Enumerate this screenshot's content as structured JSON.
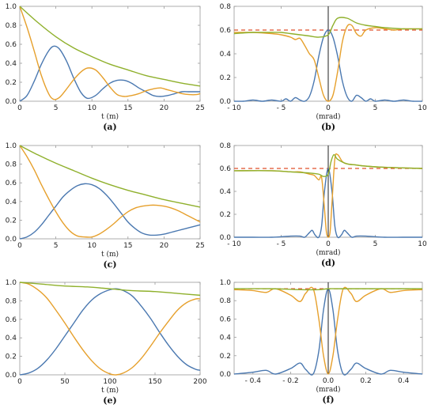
{
  "figure": {
    "colors": {
      "blue": "#4a78b0",
      "orange": "#e6a02c",
      "green": "#8fb02c",
      "red_dashed": "#e0502c",
      "axis": "#999999",
      "vline": "#222222"
    }
  },
  "chart_data": [
    {
      "id": "a",
      "label": "(a)",
      "type": "line",
      "xlabel": "t (m)",
      "ylabel": "",
      "xlim": [
        0,
        25
      ],
      "ylim": [
        0,
        1.0
      ],
      "xticks": [
        0,
        5,
        10,
        15,
        20,
        25
      ],
      "xtick_labels": [
        "0",
        "5",
        "10",
        "15",
        "20",
        "25"
      ],
      "yticks": [
        0,
        0.2,
        0.4,
        0.6,
        0.8,
        1.0
      ],
      "ytick_labels": [
        "0.0",
        "0.2",
        "0.4",
        "0.6",
        "0.8",
        "1.0"
      ],
      "series": [
        {
          "color": "blue",
          "x": [
            0,
            1,
            2,
            3,
            4,
            4.7,
            5.5,
            6.5,
            7.5,
            8.5,
            9.4,
            10.5,
            11.5,
            12.5,
            13.5,
            14.5,
            15.5,
            16.5,
            17.5,
            18.5,
            19.5,
            20.5,
            21.5,
            22.5,
            23.5,
            24.5,
            25
          ],
          "y": [
            0,
            0.06,
            0.21,
            0.39,
            0.53,
            0.58,
            0.55,
            0.42,
            0.24,
            0.09,
            0.03,
            0.06,
            0.13,
            0.19,
            0.22,
            0.22,
            0.19,
            0.14,
            0.1,
            0.06,
            0.05,
            0.06,
            0.08,
            0.1,
            0.1,
            0.1,
            0.1
          ]
        },
        {
          "color": "orange",
          "x": [
            0,
            1,
            2,
            3,
            4,
            4.7,
            5.5,
            6.5,
            7.5,
            8.5,
            9.4,
            10.5,
            11.5,
            12.5,
            13.5,
            14.5,
            15.5,
            16.5,
            17.5,
            18.5,
            19.5,
            20.5,
            21.5,
            22.5,
            23.5,
            24.5,
            25
          ],
          "y": [
            1.0,
            0.78,
            0.53,
            0.27,
            0.08,
            0.02,
            0.04,
            0.13,
            0.23,
            0.31,
            0.35,
            0.33,
            0.25,
            0.15,
            0.07,
            0.05,
            0.06,
            0.08,
            0.11,
            0.13,
            0.14,
            0.12,
            0.1,
            0.08,
            0.07,
            0.07,
            0.08
          ]
        },
        {
          "color": "green",
          "x": [
            0,
            2.5,
            5,
            7.5,
            10,
            12.5,
            15,
            17.5,
            20,
            22.5,
            25
          ],
          "y": [
            1.0,
            0.83,
            0.68,
            0.56,
            0.47,
            0.39,
            0.33,
            0.27,
            0.23,
            0.19,
            0.16
          ]
        }
      ]
    },
    {
      "id": "b",
      "label": "(b)",
      "type": "line",
      "xlabel": "(mrad)",
      "ylabel": "",
      "xlim": [
        -10,
        10
      ],
      "ylim": [
        0,
        0.8
      ],
      "xticks": [
        -10,
        -5,
        0,
        5,
        10
      ],
      "xtick_labels": [
        "- 10",
        "- 5",
        "0",
        "5",
        "10"
      ],
      "yticks": [
        0,
        0.2,
        0.4,
        0.6,
        0.8
      ],
      "ytick_labels": [
        "0.0",
        "0.2",
        "0.4",
        "0.6",
        "0.8"
      ],
      "hline": {
        "y": 0.6,
        "color": "red_dashed"
      },
      "vline": {
        "x": 0
      },
      "series": [
        {
          "color": "blue",
          "x": [
            -10,
            -9,
            -8,
            -7,
            -6,
            -5,
            -4.5,
            -4,
            -3.5,
            -3,
            -2.5,
            -2,
            -1.5,
            -1,
            -0.5,
            0,
            0.5,
            1,
            1.5,
            2,
            2.5,
            3,
            3.5,
            4,
            4.5,
            5,
            6,
            7,
            8,
            9,
            10
          ],
          "y": [
            0.0,
            0.0,
            0.01,
            0.0,
            0.01,
            0.0,
            0.02,
            0.0,
            0.03,
            0.01,
            0.0,
            0.04,
            0.17,
            0.38,
            0.54,
            0.6,
            0.54,
            0.38,
            0.17,
            0.04,
            0.0,
            0.05,
            0.03,
            0.0,
            0.02,
            0.0,
            0.01,
            0.0,
            0.01,
            0.0,
            0.0
          ]
        },
        {
          "color": "orange",
          "x": [
            -10,
            -8,
            -6,
            -5,
            -4,
            -3.5,
            -3,
            -2.5,
            -2,
            -1.5,
            -1,
            -0.5,
            0,
            0.5,
            1,
            1.5,
            2,
            2.5,
            3,
            3.5,
            4,
            5,
            6,
            7,
            8,
            10
          ],
          "y": [
            0.58,
            0.58,
            0.57,
            0.56,
            0.54,
            0.52,
            0.53,
            0.47,
            0.4,
            0.35,
            0.2,
            0.05,
            0.0,
            0.05,
            0.25,
            0.5,
            0.63,
            0.64,
            0.57,
            0.55,
            0.6,
            0.62,
            0.61,
            0.6,
            0.61,
            0.61
          ]
        },
        {
          "color": "green",
          "x": [
            -10,
            -8,
            -6,
            -5,
            -4,
            -3,
            -2,
            -1,
            0,
            0.5,
            1,
            2,
            3,
            4,
            5,
            6,
            8,
            10
          ],
          "y": [
            0.57,
            0.58,
            0.58,
            0.58,
            0.57,
            0.56,
            0.55,
            0.54,
            0.56,
            0.64,
            0.7,
            0.7,
            0.66,
            0.64,
            0.63,
            0.62,
            0.61,
            0.61
          ]
        }
      ]
    },
    {
      "id": "c",
      "label": "(c)",
      "type": "line",
      "xlabel": "t (m)",
      "ylabel": "",
      "xlim": [
        0,
        25
      ],
      "ylim": [
        0,
        1.0
      ],
      "xticks": [
        0,
        5,
        10,
        15,
        20,
        25
      ],
      "xtick_labels": [
        "0",
        "5",
        "10",
        "15",
        "20",
        "25"
      ],
      "yticks": [
        0,
        0.2,
        0.4,
        0.6,
        0.8,
        1.0
      ],
      "ytick_labels": [
        "0.0",
        "0.2",
        "0.4",
        "0.6",
        "0.8",
        "1.0"
      ],
      "series": [
        {
          "color": "blue",
          "x": [
            0,
            1,
            2,
            3,
            4,
            5,
            6,
            7,
            8,
            9,
            10,
            11,
            12,
            13,
            14,
            15,
            16,
            17,
            18,
            19,
            20,
            21,
            22,
            23,
            24,
            25
          ],
          "y": [
            0,
            0.02,
            0.07,
            0.15,
            0.25,
            0.35,
            0.45,
            0.52,
            0.57,
            0.59,
            0.58,
            0.54,
            0.47,
            0.38,
            0.28,
            0.18,
            0.11,
            0.06,
            0.04,
            0.04,
            0.05,
            0.07,
            0.09,
            0.11,
            0.13,
            0.15
          ]
        },
        {
          "color": "orange",
          "x": [
            0,
            1,
            2,
            3,
            4,
            5,
            6,
            7,
            8,
            9,
            10,
            11,
            12,
            13,
            14,
            15,
            16,
            17,
            18,
            19,
            20,
            21,
            22,
            23,
            24,
            25
          ],
          "y": [
            1.0,
            0.88,
            0.74,
            0.58,
            0.43,
            0.29,
            0.17,
            0.08,
            0.03,
            0.02,
            0.02,
            0.05,
            0.1,
            0.16,
            0.23,
            0.29,
            0.33,
            0.35,
            0.36,
            0.36,
            0.35,
            0.33,
            0.3,
            0.26,
            0.22,
            0.18
          ]
        },
        {
          "color": "green",
          "x": [
            0,
            2.5,
            5,
            7.5,
            10,
            12.5,
            15,
            17.5,
            20,
            22.5,
            25
          ],
          "y": [
            1.0,
            0.9,
            0.81,
            0.73,
            0.65,
            0.58,
            0.52,
            0.47,
            0.42,
            0.38,
            0.34
          ]
        }
      ]
    },
    {
      "id": "d",
      "label": "(d)",
      "type": "line",
      "xlabel": "(mrad)",
      "ylabel": "",
      "xlim": [
        -10,
        10
      ],
      "ylim": [
        0,
        0.8
      ],
      "xticks": [
        -10,
        -5,
        0,
        5,
        10
      ],
      "xtick_labels": [
        "- 10",
        "- 5",
        "0",
        "5",
        "10"
      ],
      "yticks": [
        0,
        0.2,
        0.4,
        0.6,
        0.8
      ],
      "ytick_labels": [
        "0.0",
        "0.2",
        "0.4",
        "0.6",
        "0.8"
      ],
      "hline": {
        "y": 0.6,
        "color": "red_dashed"
      },
      "vline": {
        "x": 0
      },
      "series": [
        {
          "color": "blue",
          "x": [
            -10,
            -8,
            -6,
            -4,
            -3,
            -2.5,
            -2,
            -1.7,
            -1.4,
            -1,
            -0.7,
            -0.4,
            0,
            0.4,
            0.7,
            1,
            1.4,
            1.7,
            2,
            2.5,
            3,
            4,
            6,
            8,
            10
          ],
          "y": [
            0.0,
            0.0,
            0.0,
            0.01,
            0.01,
            0.0,
            0.04,
            0.06,
            0.02,
            0.0,
            0.1,
            0.4,
            0.6,
            0.4,
            0.1,
            0.0,
            0.02,
            0.06,
            0.04,
            0.0,
            0.01,
            0.01,
            0.0,
            0.0,
            0.0
          ]
        },
        {
          "color": "orange",
          "x": [
            -10,
            -6,
            -4,
            -3,
            -2,
            -1.5,
            -1,
            -0.7,
            -0.4,
            -0.2,
            0,
            0.2,
            0.4,
            0.7,
            1,
            1.5,
            2,
            3,
            4,
            6,
            10
          ],
          "y": [
            0.58,
            0.58,
            0.57,
            0.57,
            0.55,
            0.54,
            0.5,
            0.52,
            0.25,
            0.05,
            0.0,
            0.05,
            0.3,
            0.68,
            0.72,
            0.66,
            0.64,
            0.63,
            0.62,
            0.61,
            0.6
          ]
        },
        {
          "color": "green",
          "x": [
            -10,
            -6,
            -4,
            -2,
            -1,
            -0.5,
            0,
            0.3,
            0.6,
            1,
            2,
            3,
            4,
            6,
            10
          ],
          "y": [
            0.58,
            0.58,
            0.57,
            0.56,
            0.55,
            0.53,
            0.55,
            0.66,
            0.72,
            0.68,
            0.64,
            0.63,
            0.62,
            0.61,
            0.6
          ]
        }
      ]
    },
    {
      "id": "e",
      "label": "(e)",
      "type": "line",
      "xlabel": "t (m)",
      "ylabel": "",
      "xlim": [
        0,
        200
      ],
      "ylim": [
        0,
        1.0
      ],
      "xticks": [
        0,
        50,
        100,
        150,
        200
      ],
      "xtick_labels": [
        "0",
        "50",
        "100",
        "150",
        "200"
      ],
      "yticks": [
        0,
        0.2,
        0.4,
        0.6,
        0.8,
        1.0
      ],
      "ytick_labels": [
        "0.0",
        "0.2",
        "0.4",
        "0.6",
        "0.8",
        "1.0"
      ],
      "series": [
        {
          "color": "blue",
          "x": [
            0,
            10,
            20,
            30,
            40,
            50,
            60,
            70,
            80,
            90,
            100,
            107,
            115,
            125,
            135,
            145,
            155,
            165,
            175,
            185,
            195,
            200
          ],
          "y": [
            0,
            0.02,
            0.07,
            0.16,
            0.28,
            0.42,
            0.56,
            0.7,
            0.81,
            0.88,
            0.92,
            0.93,
            0.91,
            0.85,
            0.74,
            0.61,
            0.46,
            0.32,
            0.2,
            0.11,
            0.06,
            0.05
          ]
        },
        {
          "color": "orange",
          "x": [
            0,
            10,
            20,
            30,
            40,
            50,
            60,
            70,
            80,
            90,
            100,
            107,
            115,
            125,
            135,
            145,
            155,
            165,
            175,
            185,
            195,
            200
          ],
          "y": [
            1.0,
            0.98,
            0.92,
            0.83,
            0.7,
            0.56,
            0.41,
            0.27,
            0.15,
            0.06,
            0.01,
            0.0,
            0.02,
            0.08,
            0.18,
            0.31,
            0.45,
            0.58,
            0.7,
            0.78,
            0.82,
            0.82
          ]
        },
        {
          "color": "green",
          "x": [
            0,
            25,
            50,
            75,
            100,
            125,
            150,
            175,
            200
          ],
          "y": [
            1.0,
            0.98,
            0.96,
            0.95,
            0.93,
            0.91,
            0.9,
            0.88,
            0.86
          ]
        }
      ]
    },
    {
      "id": "f",
      "label": "(f)",
      "type": "line",
      "xlabel": "(mrad)",
      "ylabel": "",
      "xlim": [
        -0.5,
        0.5
      ],
      "ylim": [
        0,
        1.0
      ],
      "xticks": [
        -0.4,
        -0.2,
        0,
        0.2,
        0.4
      ],
      "xtick_labels": [
        "- 0.4",
        "- 0.2",
        "0.0",
        "0.2",
        "0.4"
      ],
      "yticks": [
        0,
        0.2,
        0.4,
        0.6,
        0.8,
        1.0
      ],
      "ytick_labels": [
        "0.0",
        "0.2",
        "0.4",
        "0.6",
        "0.8",
        "1.0"
      ],
      "hline": {
        "y": 0.93,
        "color": "red_dashed"
      },
      "vline": {
        "x": 0
      },
      "series": [
        {
          "color": "blue",
          "x": [
            -0.5,
            -0.4,
            -0.33,
            -0.28,
            -0.2,
            -0.15,
            -0.12,
            -0.08,
            -0.05,
            -0.025,
            0,
            0.025,
            0.05,
            0.08,
            0.12,
            0.15,
            0.2,
            0.28,
            0.33,
            0.4,
            0.5
          ],
          "y": [
            0.0,
            0.02,
            0.04,
            0.0,
            0.06,
            0.12,
            0.05,
            0.0,
            0.25,
            0.7,
            0.93,
            0.7,
            0.25,
            0.0,
            0.05,
            0.12,
            0.06,
            0.0,
            0.04,
            0.02,
            0.0
          ]
        },
        {
          "color": "orange",
          "x": [
            -0.5,
            -0.4,
            -0.33,
            -0.28,
            -0.2,
            -0.15,
            -0.12,
            -0.08,
            -0.05,
            -0.025,
            0,
            0.025,
            0.05,
            0.08,
            0.12,
            0.15,
            0.2,
            0.28,
            0.33,
            0.4,
            0.5
          ],
          "y": [
            0.92,
            0.91,
            0.89,
            0.93,
            0.86,
            0.79,
            0.88,
            0.93,
            0.6,
            0.2,
            0.0,
            0.2,
            0.6,
            0.93,
            0.88,
            0.79,
            0.86,
            0.93,
            0.89,
            0.91,
            0.92
          ]
        },
        {
          "color": "green",
          "x": [
            -0.5,
            -0.3,
            -0.15,
            -0.05,
            0,
            0.05,
            0.15,
            0.3,
            0.5
          ],
          "y": [
            0.93,
            0.93,
            0.92,
            0.92,
            0.93,
            0.93,
            0.93,
            0.93,
            0.93
          ]
        }
      ]
    }
  ]
}
